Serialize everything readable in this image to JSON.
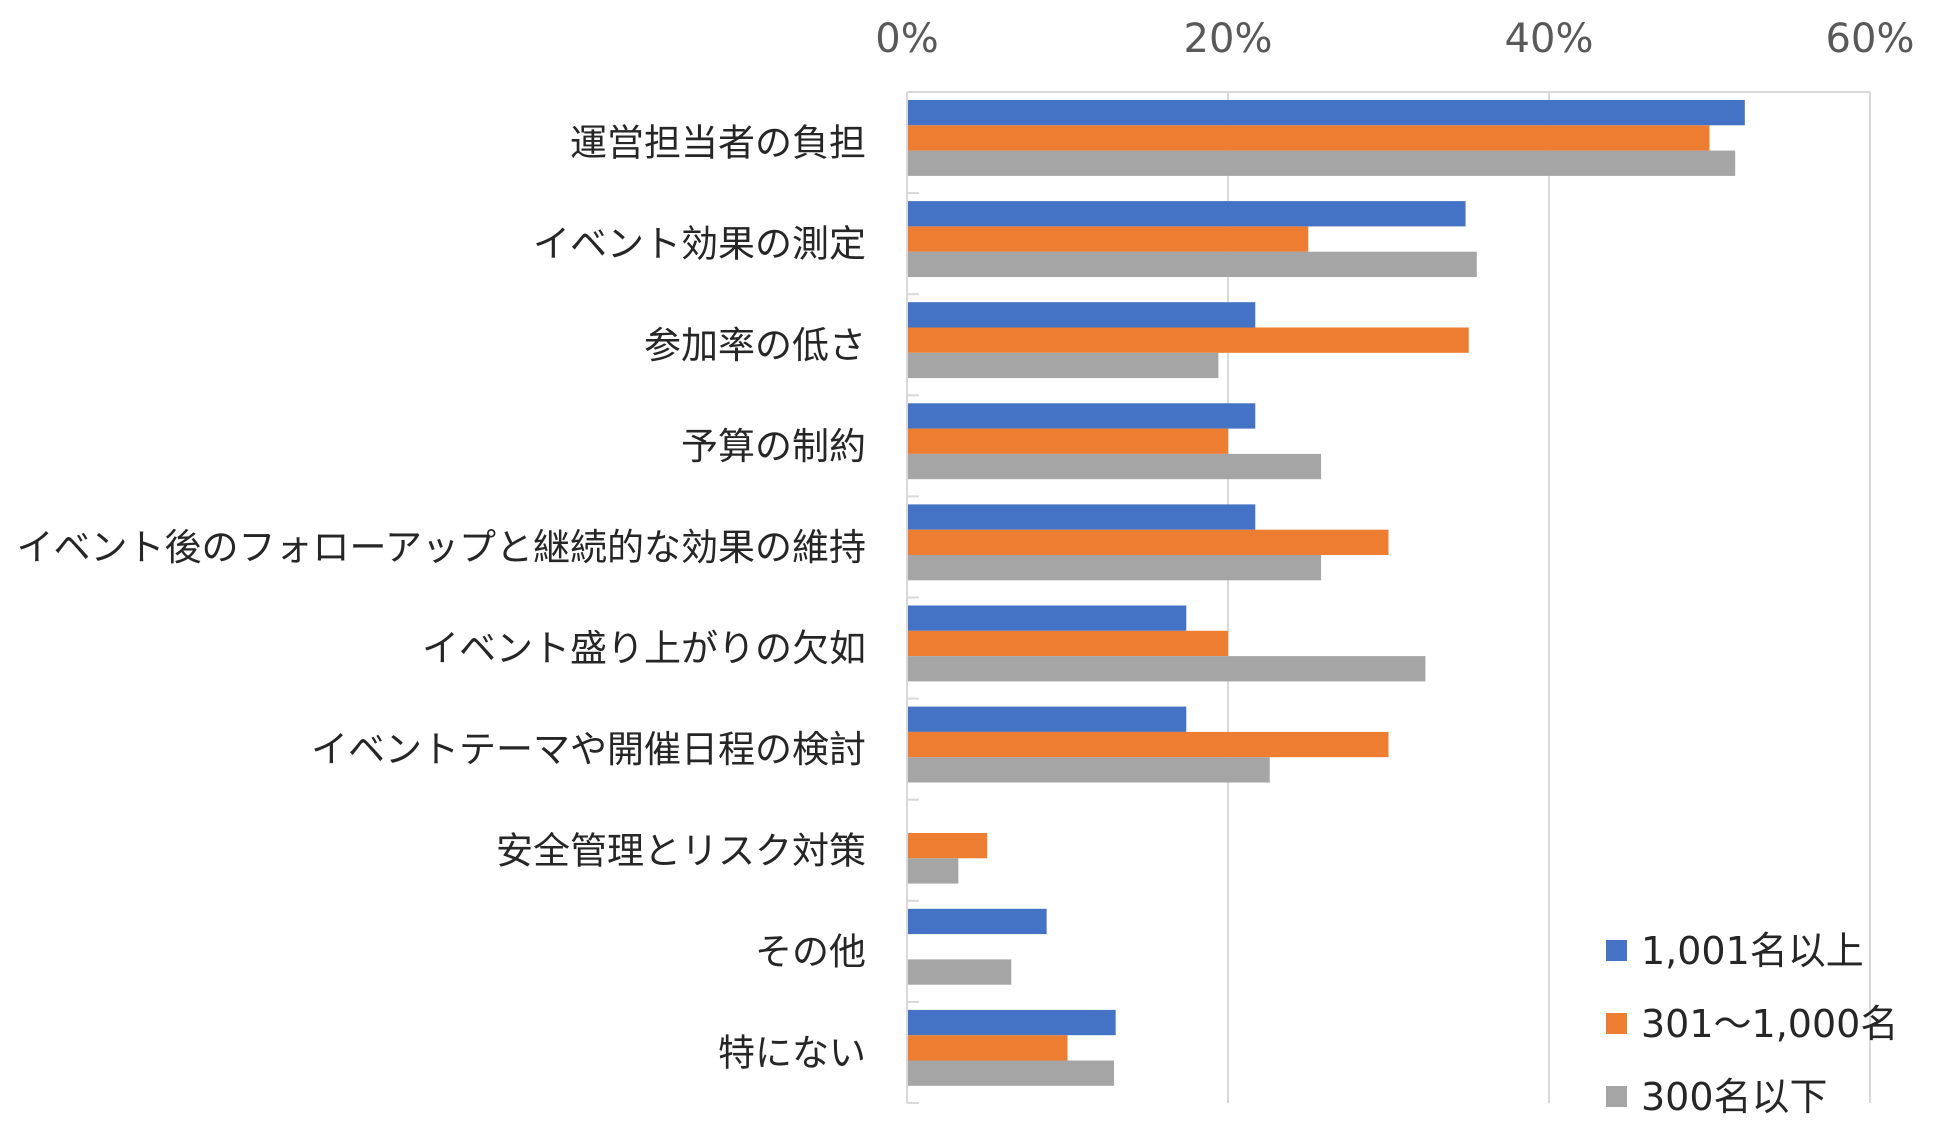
{
  "chart_data": {
    "type": "bar",
    "orientation": "horizontal",
    "title": "",
    "xlabel": "",
    "ylabel": "",
    "xlim": [
      0,
      60
    ],
    "x_ticks": [
      "0%",
      "20%",
      "40%",
      "60%"
    ],
    "x_tick_values": [
      0,
      20,
      40,
      60
    ],
    "grid": true,
    "legend_position": "bottom-right",
    "categories": [
      "運営担当者の負担",
      "イベント効果の測定",
      "参加率の低さ",
      "予算の制約",
      "イベント後のフォローアップと継続的な効果の維持",
      "イベント盛り上がりの欠如",
      "イベントテーマや開催日程の検討",
      "安全管理とリスク対策",
      "その他",
      "特にない"
    ],
    "series": [
      {
        "name": "1,001名以上",
        "color": "#4472C4",
        "values": [
          52.2,
          34.8,
          21.7,
          21.7,
          21.7,
          17.4,
          17.4,
          0,
          8.7,
          13.0
        ]
      },
      {
        "name": "301～1,000名",
        "color": "#ED7D31",
        "values": [
          50.0,
          25.0,
          35.0,
          20.0,
          30.0,
          20.0,
          30.0,
          5.0,
          0,
          10.0
        ]
      },
      {
        "name": "300名以下",
        "color": "#A5A5A5",
        "values": [
          51.6,
          35.5,
          19.4,
          25.8,
          25.8,
          32.3,
          22.6,
          3.2,
          6.5,
          12.9
        ]
      }
    ]
  }
}
